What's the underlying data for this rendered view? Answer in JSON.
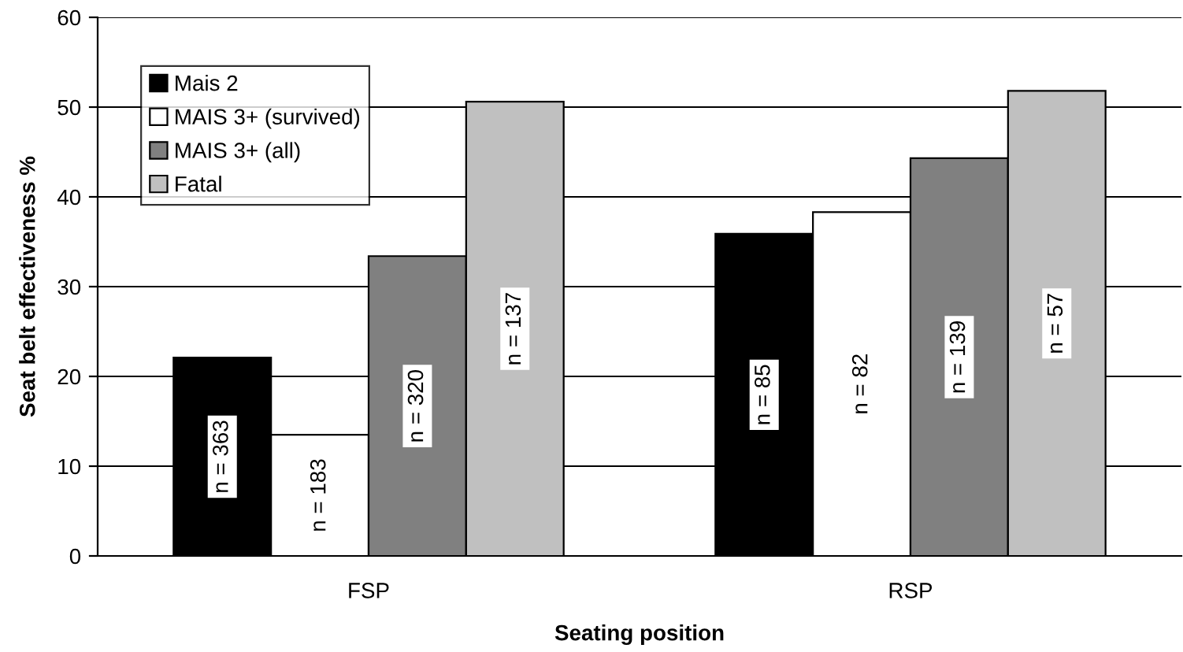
{
  "chart_data": {
    "type": "bar",
    "xlabel": "Seating position",
    "ylabel": "Seat belt effectiveness %",
    "categories": [
      "FSP",
      "RSP"
    ],
    "series": [
      {
        "name": "Mais 2",
        "color": "#000000",
        "values": [
          22.1,
          35.9
        ]
      },
      {
        "name": "MAIS 3+ (survived)",
        "color": "#ffffff",
        "values": [
          13.5,
          38.3
        ]
      },
      {
        "name": "MAIS 3+ (all)",
        "color": "#808080",
        "values": [
          33.4,
          44.3
        ]
      },
      {
        "name": "Fatal",
        "color": "#c0c0c0",
        "values": [
          50.6,
          51.8
        ]
      }
    ],
    "annotations": [
      "n = 363",
      "n = 85",
      "n = 183",
      "n = 82",
      "n = 320",
      "n = 139",
      "n = 137",
      "n = 57"
    ],
    "ylim": [
      0,
      60
    ],
    "yticks": [
      0,
      10,
      20,
      30,
      40,
      50,
      60
    ],
    "grid": "y",
    "legend": "top left"
  }
}
